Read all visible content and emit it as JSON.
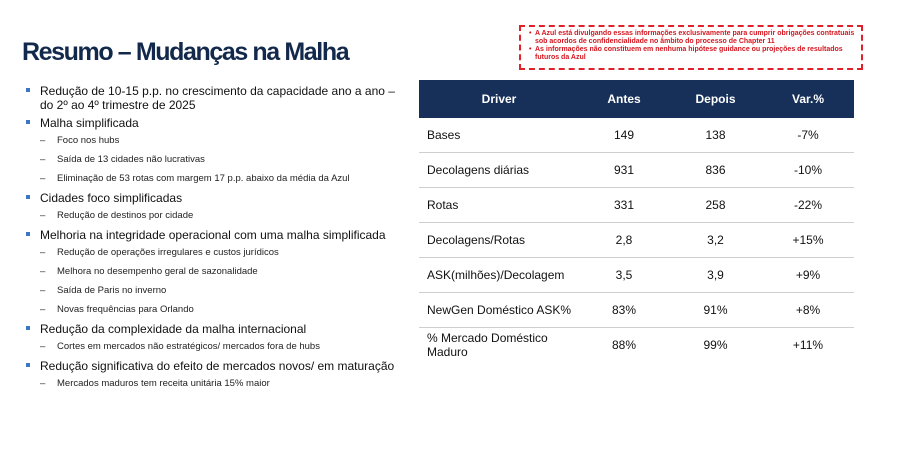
{
  "title": "Resumo – Mudanças na Malha",
  "disclaimer": [
    "A Azul está divulgando essas informações exclusivamente para cumprir obrigações contratuais sob acordos de confidencialidade no âmbito do processo de Chapter 11",
    "As informações não constituem em nenhuma hipótese guidance ou projeções de resultados futuros da Azul"
  ],
  "bullets": [
    {
      "text": "Redução de 10-15 p.p. no crescimento da capacidade ano a ano – do 2º ao 4º trimestre de 2025",
      "subs": []
    },
    {
      "text": "Malha simplificada",
      "subs": [
        "Foco nos hubs",
        "Saída de 13 cidades não lucrativas",
        "Eliminação de 53 rotas com margem 17 p.p. abaixo da média da Azul"
      ]
    },
    {
      "text": "Cidades foco simplificadas",
      "subs": [
        "Redução de destinos por cidade"
      ]
    },
    {
      "text": "Melhoria na integridade operacional com uma malha simplificada",
      "subs": [
        "Redução de operações irregulares e custos jurídicos",
        "Melhora no desempenho geral de sazonalidade",
        "Saída de Paris no inverno",
        "Novas frequências para Orlando"
      ]
    },
    {
      "text": "Redução da complexidade da malha internacional",
      "subs": [
        "Cortes em mercados não estratégicos/ mercados fora de hubs"
      ]
    },
    {
      "text": "Redução significativa do efeito de mercados novos/ em maturação",
      "subs": [
        "Mercados maduros tem receita unitária 15% maior"
      ]
    }
  ],
  "table": {
    "headers": [
      "Driver",
      "Antes",
      "Depois",
      "Var.%"
    ],
    "rows": [
      [
        "Bases",
        "149",
        "138",
        "-7%"
      ],
      [
        "Decolagens diárias",
        "931",
        "836",
        "-10%"
      ],
      [
        "Rotas",
        "331",
        "258",
        "-22%"
      ],
      [
        "Decolagens/Rotas",
        "2,8",
        "3,2",
        "+15%"
      ],
      [
        "ASK(milhões)/Decolagem",
        "3,5",
        "3,9",
        "+9%"
      ],
      [
        "NewGen Doméstico ASK%",
        "83%",
        "91%",
        "+8%"
      ],
      [
        "% Mercado Doméstico Maduro",
        "88%",
        "99%",
        "+11%"
      ]
    ]
  },
  "colors": {
    "title": "#13294b",
    "table_header": "#16305a",
    "bullet": "#3b78c3",
    "disclaimer": "#d4161f"
  }
}
